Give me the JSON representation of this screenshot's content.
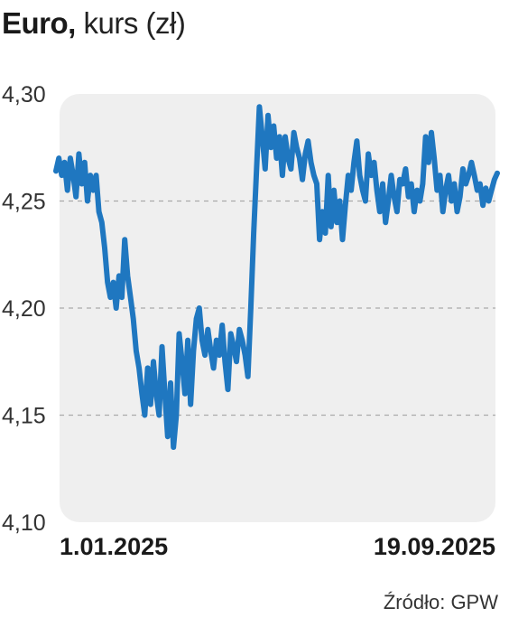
{
  "header": {
    "title_bold": "Euro,",
    "title_rest": "kurs (zł)"
  },
  "source": "Źródło: GPW",
  "colors": {
    "line": "#1f77c0",
    "panel": "#efefef",
    "grid": "#aaaaaa",
    "text": "#1a1a1a"
  },
  "chart_data": {
    "type": "line",
    "title": "Euro, kurs (zł)",
    "ylim": [
      4.1,
      4.3
    ],
    "y_ticks": [
      "4,10",
      "4,15",
      "4,20",
      "4,25",
      "4,30"
    ],
    "y_tick_values": [
      4.1,
      4.15,
      4.2,
      4.25,
      4.3
    ],
    "x_labels": [
      "1.01.2025",
      "19.09.2025"
    ],
    "x_range": [
      "2025-01-01",
      "2025-09-19"
    ],
    "grid": {
      "dashed_y": [
        4.15,
        4.2,
        4.25
      ]
    },
    "series": [
      {
        "values": [
          4.264,
          4.27,
          4.262,
          4.268,
          4.255,
          4.27,
          4.262,
          4.252,
          4.272,
          4.258,
          4.268,
          4.25,
          4.262,
          4.255,
          4.262,
          4.245,
          4.24,
          4.228,
          4.212,
          4.205,
          4.212,
          4.2,
          4.215,
          4.205,
          4.232,
          4.215,
          4.205,
          4.195,
          4.18,
          4.172,
          4.16,
          4.15,
          4.172,
          4.155,
          4.175,
          4.16,
          4.15,
          4.182,
          4.16,
          4.14,
          4.165,
          4.135,
          4.15,
          4.188,
          4.175,
          4.16,
          4.185,
          4.155,
          4.18,
          4.195,
          4.2,
          4.185,
          4.178,
          4.19,
          4.18,
          4.172,
          4.185,
          4.178,
          4.192,
          4.175,
          4.162,
          4.188,
          4.182,
          4.175,
          4.19,
          4.185,
          4.178,
          4.168,
          4.2,
          4.235,
          4.265,
          4.294,
          4.28,
          4.265,
          4.29,
          4.275,
          4.285,
          4.27,
          4.28,
          4.262,
          4.28,
          4.27,
          4.265,
          4.282,
          4.275,
          4.27,
          4.26,
          4.272,
          4.278,
          4.268,
          4.262,
          4.258,
          4.232,
          4.245,
          4.235,
          4.262,
          4.238,
          4.255,
          4.24,
          4.25,
          4.232,
          4.248,
          4.262,
          4.255,
          4.268,
          4.278,
          4.262,
          4.255,
          4.25,
          4.272,
          4.262,
          4.268,
          4.255,
          4.245,
          4.258,
          4.24,
          4.25,
          4.262,
          4.252,
          4.245,
          4.26,
          4.258,
          4.265,
          4.252,
          4.258,
          4.245,
          4.255,
          4.25,
          4.258,
          4.28,
          4.268,
          4.282,
          4.27,
          4.255,
          4.262,
          4.245,
          4.255,
          4.262,
          4.25,
          4.258,
          4.245,
          4.252,
          4.265,
          4.258,
          4.262,
          4.268,
          4.262,
          4.255,
          4.258,
          4.248,
          4.256,
          4.25,
          4.255,
          4.26,
          4.263
        ]
      }
    ]
  }
}
